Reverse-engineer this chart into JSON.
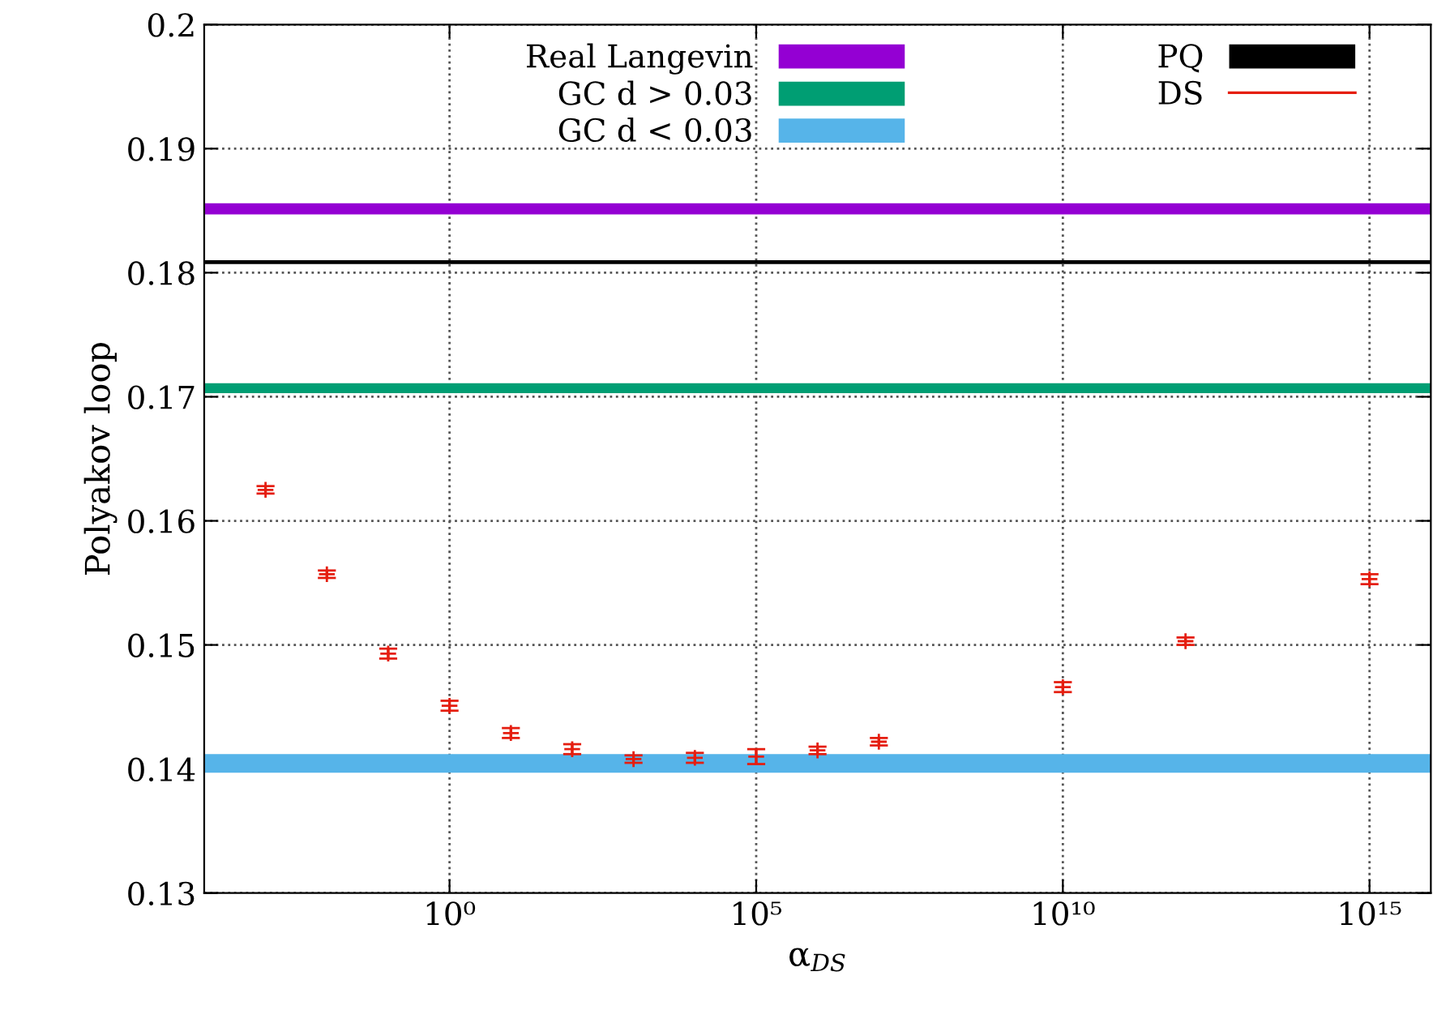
{
  "chart_data": {
    "type": "scatter",
    "xlabel": "α$_{DS}$",
    "ylabel": "Polyakov loop",
    "log": "x",
    "x": [
      0.001,
      0.01,
      0.1,
      1,
      10,
      100,
      1000,
      10000,
      100000,
      1000000,
      10000000,
      10000000000,
      1000000000000,
      1000000000000000
    ],
    "series": [
      {
        "name": "DS",
        "color": "#e51e10",
        "values": [
          0.1625,
          0.1557,
          0.1493,
          0.1451,
          0.1429,
          0.1416,
          0.1408,
          0.1409,
          0.141,
          0.1415,
          0.1422,
          0.1466,
          0.1503,
          0.1553
        ],
        "errors": [
          0.0003,
          0.0003,
          0.0004,
          0.0004,
          0.0004,
          0.0004,
          0.0003,
          0.0004,
          0.0006,
          0.0003,
          0.0003,
          0.0004,
          0.0003,
          0.0004
        ]
      }
    ],
    "bands": [
      {
        "axis": "y",
        "from": 0.1847,
        "to": 0.1856,
        "label": "Real Langevin",
        "color": "#9400d3"
      },
      {
        "axis": "y",
        "from": 0.1703,
        "to": 0.1711,
        "label": "GC d > 0.03",
        "color": "#009e73"
      },
      {
        "axis": "y",
        "from": 0.1397,
        "to": 0.1412,
        "label": "GC d < 0.03",
        "color": "#56b4e9"
      },
      {
        "axis": "y",
        "from": 0.1807,
        "to": 0.181,
        "label": "PQ",
        "color": "#000000"
      }
    ],
    "xlim": [
      0.0001,
      1e+16
    ],
    "xticks": [
      {
        "value": 1,
        "label": "10⁰"
      },
      {
        "value": 100000,
        "label": "10⁵"
      },
      {
        "value": 10000000000,
        "label": "10¹⁰"
      },
      {
        "value": 1000000000000000.0,
        "label": "10¹⁵"
      }
    ],
    "ylim": [
      0.13,
      0.2
    ],
    "yticks": [
      0.13,
      0.14,
      0.15,
      0.16,
      0.17,
      0.18,
      0.19,
      0.2
    ],
    "grid": true,
    "legend": "top",
    "marker": "cross"
  }
}
